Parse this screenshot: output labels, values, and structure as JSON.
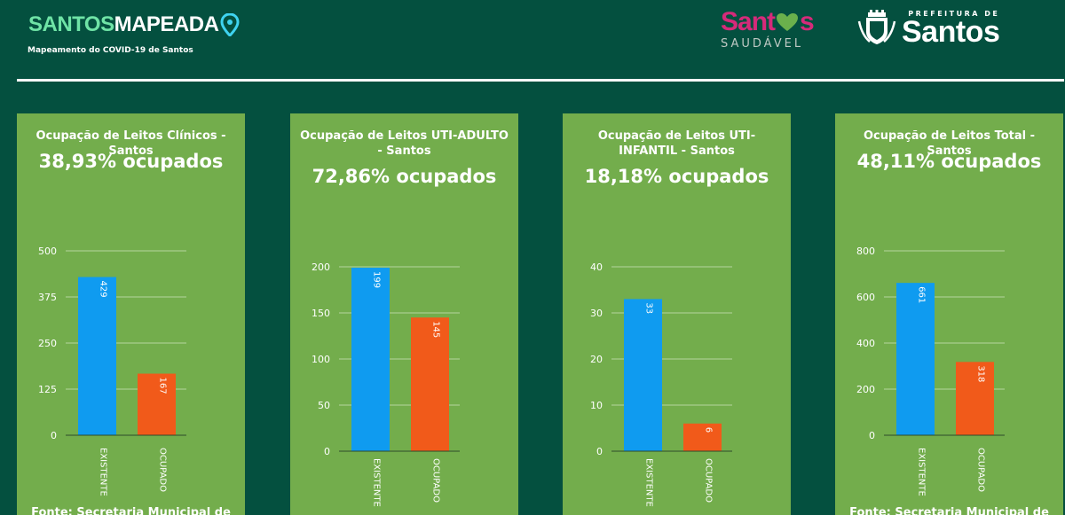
{
  "header": {
    "brand_part1": "SANTOS",
    "brand_part2": "MAPEADA",
    "tagline": "Mapeamento do COVID-19 de Santos",
    "logo_saudavel_top": "Sant",
    "logo_saudavel_top_end": "s",
    "logo_saudavel_bottom": "SAUDÁVEL",
    "prefeitura_small": "PREFEITURA DE",
    "prefeitura_big": "Santos",
    "icons": [
      "location-pin-icon",
      "heart-icon",
      "city-crest-icon"
    ]
  },
  "colors": {
    "background": "#04503f",
    "card": "#73ad4c",
    "existente": "#0f9bf0",
    "ocupado": "#f15a1a",
    "brand_green": "#6fe3a6",
    "saudavel_pink": "#d62a7a"
  },
  "cards": [
    {
      "title": "Ocupação de Leitos Clínicos - Santos",
      "percent": "38,93% ocupados",
      "fonte": "Fonte: Secretaria Municipal de"
    },
    {
      "title": "Ocupação de Leitos UTI-ADULTO - Santos",
      "percent": "72,86% ocupados",
      "fonte": ""
    },
    {
      "title": "Ocupação de Leitos UTI-INFANTIL - Santos",
      "percent": "18,18% ocupados",
      "fonte": ""
    },
    {
      "title": "Ocupação de Leitos Total - Santos",
      "percent": "48,11% ocupados",
      "fonte": "Fonte: Secretaria Municipal de"
    }
  ],
  "chart_data": [
    {
      "type": "bar",
      "title": "Ocupação de Leitos Clínicos - Santos",
      "categories": [
        "EXISTENTE",
        "OCUPADO"
      ],
      "values": [
        429,
        167
      ],
      "ylim": [
        0,
        500
      ],
      "yticks": [
        0,
        125,
        250,
        375,
        500
      ],
      "grid": true,
      "data_labels": true
    },
    {
      "type": "bar",
      "title": "Ocupação de Leitos UTI-ADULTO - Santos",
      "categories": [
        "EXISTENTE",
        "OCUPADO"
      ],
      "values": [
        199,
        145
      ],
      "ylim": [
        0,
        200
      ],
      "yticks": [
        0,
        50,
        100,
        150,
        200
      ],
      "grid": true,
      "data_labels": true
    },
    {
      "type": "bar",
      "title": "Ocupação de Leitos UTI-INFANTIL - Santos",
      "categories": [
        "EXISTENTE",
        "OCUPADO"
      ],
      "values": [
        33,
        6
      ],
      "ylim": [
        0,
        40
      ],
      "yticks": [
        0,
        10,
        20,
        30,
        40
      ],
      "grid": true,
      "data_labels": true
    },
    {
      "type": "bar",
      "title": "Ocupação de Leitos Total - Santos",
      "categories": [
        "EXISTENTE",
        "OCUPADO"
      ],
      "values": [
        661,
        318
      ],
      "ylim": [
        0,
        800
      ],
      "yticks": [
        0,
        200,
        400,
        600,
        800
      ],
      "grid": true,
      "data_labels": true
    }
  ]
}
